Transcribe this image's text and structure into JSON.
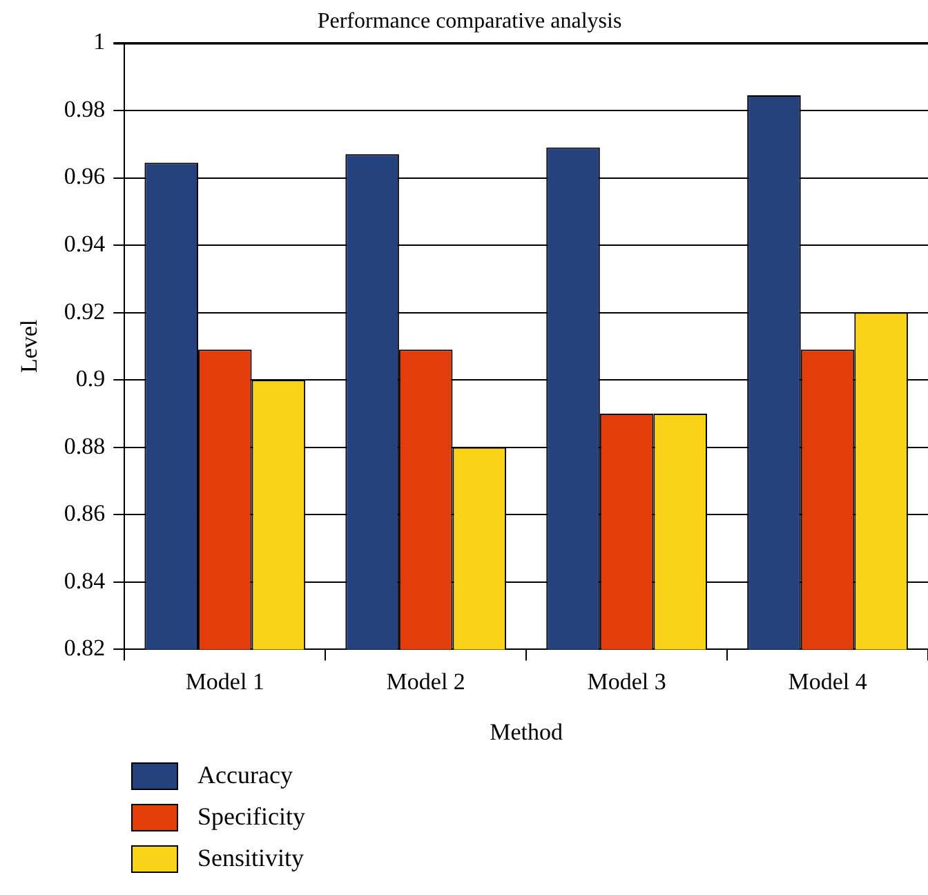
{
  "chart_data": {
    "type": "bar",
    "title": "Performance comparative analysis",
    "xlabel": "Method",
    "ylabel": "Level",
    "categories": [
      "Model 1",
      "Model 2",
      "Model 3",
      "Model 4"
    ],
    "series": [
      {
        "name": "Accuracy",
        "color": "#25427f",
        "values": [
          0.9645,
          0.967,
          0.969,
          0.9845
        ]
      },
      {
        "name": "Specificity",
        "color": "#e33d0c",
        "values": [
          0.909,
          0.909,
          0.89,
          0.909
        ]
      },
      {
        "name": "Sensitivity",
        "color": "#fad217",
        "values": [
          0.9,
          0.88,
          0.89,
          0.92
        ]
      }
    ],
    "ylim": [
      0.82,
      1
    ],
    "yticks": [
      0.82,
      0.84,
      0.86,
      0.88,
      0.9,
      0.92,
      0.94,
      0.96,
      0.98,
      1
    ],
    "grid": "y",
    "legend": "bottom left"
  }
}
